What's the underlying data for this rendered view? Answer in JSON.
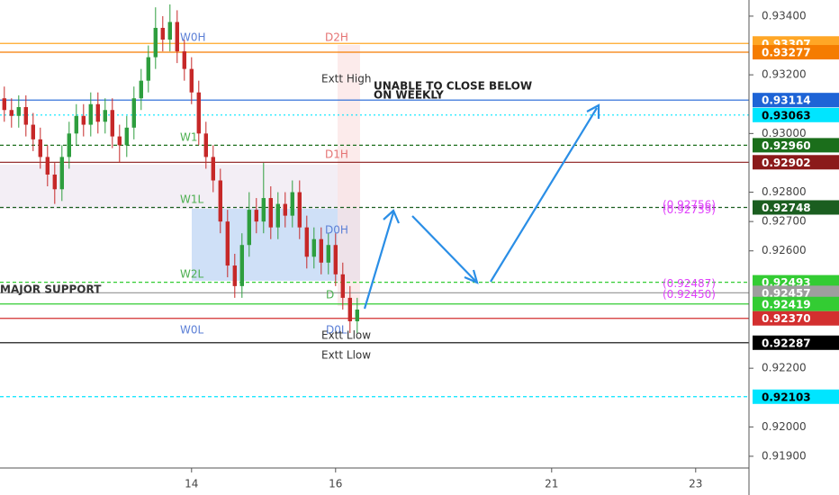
{
  "chart_data": {
    "type": "candlestick",
    "x": [
      -2.6,
      -2.5,
      -2.4,
      -2.3,
      -2.2,
      -2.1,
      -2.0,
      -1.9,
      -1.8,
      -1.7,
      -1.6,
      -1.5,
      -1.4,
      -1.3,
      -1.2,
      -1.1,
      -1.0,
      -0.9,
      -0.8,
      -0.7,
      -0.6,
      -0.5,
      -0.4,
      -0.3,
      -0.2,
      -0.1,
      0.0,
      0.1,
      0.2,
      0.3,
      0.4,
      0.5,
      0.6,
      0.7,
      0.8,
      0.9,
      1.0,
      1.1,
      1.2,
      1.3,
      1.4,
      1.5,
      1.6,
      1.7,
      1.8,
      1.9,
      2.0,
      2.1,
      2.2,
      2.3
    ],
    "open": [
      0.9312,
      0.9308,
      0.9306,
      0.9309,
      0.9303,
      0.9298,
      0.9292,
      0.9286,
      0.9281,
      0.9292,
      0.93,
      0.9306,
      0.9303,
      0.931,
      0.9304,
      0.9308,
      0.9299,
      0.9296,
      0.9302,
      0.9312,
      0.9318,
      0.9326,
      0.9336,
      0.9332,
      0.9338,
      0.9328,
      0.9322,
      0.9314,
      0.93,
      0.9292,
      0.9284,
      0.927,
      0.9255,
      0.9248,
      0.9262,
      0.9274,
      0.927,
      0.9278,
      0.9268,
      0.9276,
      0.9272,
      0.928,
      0.9268,
      0.9258,
      0.9264,
      0.9256,
      0.9262,
      0.9252,
      0.9244,
      0.9236
    ],
    "high": [
      0.9316,
      0.9312,
      0.9313,
      0.9313,
      0.9307,
      0.9302,
      0.9296,
      0.929,
      0.9296,
      0.9304,
      0.931,
      0.931,
      0.9314,
      0.9314,
      0.9312,
      0.9312,
      0.9303,
      0.9306,
      0.9316,
      0.9322,
      0.933,
      0.9343,
      0.934,
      0.9344,
      0.9342,
      0.9332,
      0.9326,
      0.9318,
      0.9304,
      0.9296,
      0.9288,
      0.9274,
      0.9259,
      0.9266,
      0.928,
      0.9278,
      0.929,
      0.9282,
      0.928,
      0.928,
      0.9284,
      0.9284,
      0.9272,
      0.9268,
      0.9268,
      0.9266,
      0.9266,
      0.9256,
      0.9248,
      0.9244
    ],
    "low": [
      0.9304,
      0.9302,
      0.9302,
      0.9299,
      0.9294,
      0.9288,
      0.9282,
      0.9276,
      0.9277,
      0.9288,
      0.9296,
      0.9299,
      0.9299,
      0.93,
      0.93,
      0.9295,
      0.929,
      0.9292,
      0.9298,
      0.9308,
      0.9314,
      0.9322,
      0.9328,
      0.9328,
      0.9324,
      0.9318,
      0.931,
      0.9296,
      0.9288,
      0.928,
      0.9266,
      0.9251,
      0.9244,
      0.9244,
      0.9258,
      0.9266,
      0.9266,
      0.9264,
      0.9264,
      0.9268,
      0.9268,
      0.9264,
      0.9254,
      0.9254,
      0.9252,
      0.9252,
      0.9248,
      0.924,
      0.9232,
      0.9232
    ],
    "close": [
      0.9308,
      0.9306,
      0.9309,
      0.9303,
      0.9298,
      0.9292,
      0.9286,
      0.9281,
      0.9292,
      0.93,
      0.9306,
      0.9303,
      0.931,
      0.9304,
      0.9308,
      0.9299,
      0.9296,
      0.9302,
      0.9312,
      0.9318,
      0.9326,
      0.9336,
      0.9332,
      0.9338,
      0.9328,
      0.9322,
      0.9314,
      0.93,
      0.9292,
      0.9284,
      0.927,
      0.9255,
      0.9248,
      0.9262,
      0.9274,
      0.927,
      0.9278,
      0.9268,
      0.9276,
      0.9272,
      0.928,
      0.9268,
      0.9258,
      0.9264,
      0.9256,
      0.9262,
      0.9252,
      0.9244,
      0.9236,
      0.924
    ],
    "up_color": "#2e9e3e",
    "down_color": "#c62828",
    "xlim": [
      -2.66,
      7.74
    ],
    "xticks": [
      {
        "value": 0,
        "label": "14"
      },
      {
        "value": 2,
        "label": "16"
      },
      {
        "value": 5,
        "label": "21"
      },
      {
        "value": 7,
        "label": "23"
      }
    ],
    "ylim": [
      0.9186,
      0.93455
    ],
    "yticks": [
      {
        "value": 0.934,
        "label": "0.93400"
      },
      {
        "value": 0.932,
        "label": "0.93200"
      },
      {
        "value": 0.93,
        "label": "0.93000"
      },
      {
        "value": 0.928,
        "label": "0.92800"
      },
      {
        "value": 0.927,
        "label": "0.92700"
      },
      {
        "value": 0.926,
        "label": "0.92600"
      },
      {
        "value": 0.922,
        "label": "0.92200"
      },
      {
        "value": 0.92,
        "label": "0.92000"
      },
      {
        "value": 0.919,
        "label": "0.91900"
      }
    ],
    "levels": [
      {
        "value": 0.93307,
        "label": "0.93307",
        "color": "#ffa726",
        "style": "solid"
      },
      {
        "value": 0.93277,
        "label": "0.93277",
        "color": "#f57c00",
        "style": "solid"
      },
      {
        "value": 0.93114,
        "label": "0.93114",
        "color": "#1e64d6",
        "style": "solid"
      },
      {
        "value": 0.93063,
        "label": "0.93063",
        "color": "#00e5ff",
        "style": "dotted"
      },
      {
        "value": 0.9296,
        "label": "0.92960",
        "color": "#1b6e1b",
        "style": "dashed"
      },
      {
        "value": 0.92902,
        "label": "0.92902",
        "color": "#8b1a1a",
        "style": "solid"
      },
      {
        "value": 0.92748,
        "label": "0.92748",
        "color": "#1b5e20",
        "style": "dashed"
      },
      {
        "value": 0.92493,
        "label": "0.92493",
        "color": "#33cc33",
        "style": "dashed"
      },
      {
        "value": 0.92457,
        "label": "0.92457",
        "color": "#9e9e9e",
        "style": "solid"
      },
      {
        "value": 0.92419,
        "label": "0.92419",
        "color": "#33cc33",
        "style": "solid"
      },
      {
        "value": 0.9237,
        "label": "0.92370",
        "color": "#d32f2f",
        "style": "solid"
      },
      {
        "value": 0.92287,
        "label": "0.92287",
        "color": "#000000",
        "style": "solid"
      },
      {
        "value": 0.92103,
        "label": "0.92103",
        "color": "#00e5ff",
        "style": "dashed"
      }
    ],
    "price_labels": [
      {
        "value": 0.92756,
        "label": "(0.92756)"
      },
      {
        "value": 0.92739,
        "label": "(0.92739)"
      },
      {
        "value": 0.92487,
        "label": "(0.92487)"
      },
      {
        "value": 0.9245,
        "label": "(0.92450)"
      }
    ],
    "price_label_color": "#e040fb",
    "annotations": [
      "W0H",
      "D2H",
      "Extt High",
      "UNABLE TO CLOSE BELOW",
      "ON WEEKLY",
      "W1",
      "D1H",
      "W1L",
      "D0H",
      "W2L",
      "MAJOR SUPPORT",
      "D",
      "W0L",
      "D0L",
      "Extt Llow",
      "Extt Llow"
    ]
  }
}
